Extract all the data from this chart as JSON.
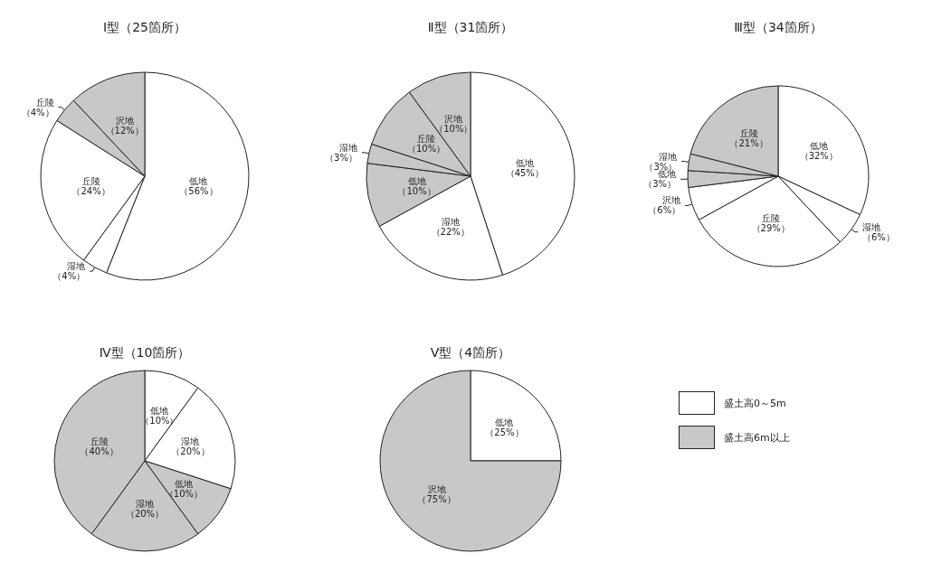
{
  "chart_data": [
    {
      "type": "pie",
      "title": "Ⅰ型（25箇所）",
      "categories": [
        "低地",
        "湿地",
        "丘陵",
        "丘陵",
        "沢地"
      ],
      "values": [
        56,
        4,
        24,
        4,
        12
      ],
      "value_labels": [
        "（56%）",
        "（4%）",
        "（24%）",
        "（4%）",
        "（12%）"
      ],
      "colors": [
        "#ffffff",
        "#ffffff",
        "#ffffff",
        "#c8c8c8",
        "#c8c8c8"
      ]
    },
    {
      "type": "pie",
      "title": "Ⅱ型（31箇所）",
      "categories": [
        "低地",
        "湿地",
        "低地",
        "湿地",
        "丘陵",
        "沢地"
      ],
      "values": [
        45,
        22,
        10,
        3,
        10,
        10
      ],
      "value_labels": [
        "（45%）",
        "（22%）",
        "（10%）",
        "（3%）",
        "（10%）",
        "（10%）"
      ],
      "colors": [
        "#ffffff",
        "#ffffff",
        "#c8c8c8",
        "#c8c8c8",
        "#c8c8c8",
        "#c8c8c8"
      ]
    },
    {
      "type": "pie",
      "title": "Ⅲ型（34箇所）",
      "categories": [
        "低地",
        "湿地",
        "丘陵",
        "沢地",
        "低地",
        "湿地",
        "丘陵"
      ],
      "values": [
        32,
        6,
        29,
        6,
        3,
        3,
        21
      ],
      "value_labels": [
        "（32%）",
        "（6%）",
        "（29%）",
        "（6%）",
        "（3%）",
        "（3%）",
        "（21%）"
      ],
      "colors": [
        "#ffffff",
        "#ffffff",
        "#ffffff",
        "#ffffff",
        "#c8c8c8",
        "#c8c8c8",
        "#c8c8c8"
      ]
    },
    {
      "type": "pie",
      "title": "Ⅳ型（10箇所）",
      "categories": [
        "低地",
        "湿地",
        "低地",
        "湿地",
        "丘陵"
      ],
      "values": [
        10,
        20,
        10,
        20,
        40
      ],
      "value_labels": [
        "（10%）",
        "（20%）",
        "（10%）",
        "（20%）",
        "（40%）"
      ],
      "colors": [
        "#ffffff",
        "#ffffff",
        "#c8c8c8",
        "#c8c8c8",
        "#c8c8c8"
      ]
    },
    {
      "type": "pie",
      "title": "Ⅴ型（4箇所）",
      "categories": [
        "低地",
        "沢地"
      ],
      "values": [
        25,
        75
      ],
      "value_labels": [
        "（25%）",
        "（75%）"
      ],
      "colors": [
        "#ffffff",
        "#c8c8c8"
      ]
    },
    {
      "type": "other",
      "legend": "right",
      "series": [
        {
          "name": "盛土高0～5m",
          "color": "#ffffff"
        },
        {
          "name": "盛土高6m以上",
          "color": "#c8c8c8"
        }
      ]
    }
  ]
}
